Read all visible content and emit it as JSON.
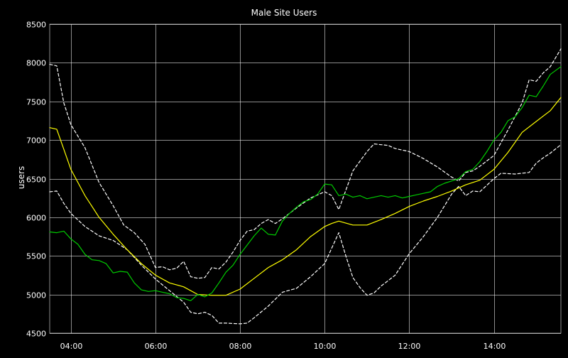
{
  "chart_data": {
    "type": "line",
    "title": "Male Site Users",
    "ylabel": "users",
    "xlabel": "",
    "ylim": [
      4500,
      8500
    ],
    "xlim": [
      "03:30",
      "15:35"
    ],
    "grid": true,
    "y_ticks": [
      4500,
      5000,
      5500,
      6000,
      6500,
      7000,
      7500,
      8000,
      8500
    ],
    "x_ticks": [
      "04:00",
      "06:00",
      "08:00",
      "10:00",
      "12:00",
      "14:00"
    ],
    "colors": {
      "background": "#000000",
      "grid": "#ffffff",
      "text": "#ffffff",
      "actual": "#00cc00",
      "forecast": "#ffff00",
      "bands": "#ffffff"
    },
    "series": [
      {
        "role": "upper-band",
        "style": "dashed",
        "color": "#ffffff",
        "points": [
          [
            "03:30",
            7980
          ],
          [
            "03:40",
            7960
          ],
          [
            "03:50",
            7480
          ],
          [
            "04:00",
            7200
          ],
          [
            "04:20",
            6900
          ],
          [
            "04:40",
            6450
          ],
          [
            "05:00",
            6150
          ],
          [
            "05:15",
            5900
          ],
          [
            "05:30",
            5800
          ],
          [
            "05:45",
            5650
          ],
          [
            "06:00",
            5350
          ],
          [
            "06:10",
            5360
          ],
          [
            "06:20",
            5320
          ],
          [
            "06:30",
            5340
          ],
          [
            "06:40",
            5430
          ],
          [
            "06:50",
            5230
          ],
          [
            "07:00",
            5210
          ],
          [
            "07:10",
            5220
          ],
          [
            "07:20",
            5350
          ],
          [
            "07:30",
            5330
          ],
          [
            "07:40",
            5420
          ],
          [
            "07:50",
            5550
          ],
          [
            "08:00",
            5700
          ],
          [
            "08:10",
            5820
          ],
          [
            "08:20",
            5840
          ],
          [
            "08:30",
            5920
          ],
          [
            "08:40",
            5970
          ],
          [
            "08:50",
            5920
          ],
          [
            "09:00",
            5980
          ],
          [
            "09:20",
            6120
          ],
          [
            "09:40",
            6250
          ],
          [
            "10:00",
            6330
          ],
          [
            "10:10",
            6280
          ],
          [
            "10:20",
            6100
          ],
          [
            "10:30",
            6350
          ],
          [
            "10:40",
            6600
          ],
          [
            "11:00",
            6850
          ],
          [
            "11:10",
            6950
          ],
          [
            "11:20",
            6940
          ],
          [
            "11:30",
            6930
          ],
          [
            "11:40",
            6890
          ],
          [
            "12:00",
            6850
          ],
          [
            "12:20",
            6760
          ],
          [
            "12:40",
            6650
          ],
          [
            "13:00",
            6520
          ],
          [
            "13:10",
            6470
          ],
          [
            "13:20",
            6580
          ],
          [
            "13:30",
            6600
          ],
          [
            "13:40",
            6660
          ],
          [
            "14:00",
            6800
          ],
          [
            "14:20",
            7130
          ],
          [
            "14:40",
            7480
          ],
          [
            "14:50",
            7780
          ],
          [
            "15:00",
            7760
          ],
          [
            "15:10",
            7870
          ],
          [
            "15:20",
            7950
          ],
          [
            "15:35",
            8180
          ]
        ]
      },
      {
        "role": "lower-band",
        "style": "dashed",
        "color": "#ffffff",
        "points": [
          [
            "03:30",
            6330
          ],
          [
            "03:40",
            6340
          ],
          [
            "03:50",
            6180
          ],
          [
            "04:00",
            6050
          ],
          [
            "04:20",
            5880
          ],
          [
            "04:40",
            5760
          ],
          [
            "05:00",
            5700
          ],
          [
            "05:20",
            5580
          ],
          [
            "05:40",
            5380
          ],
          [
            "06:00",
            5200
          ],
          [
            "06:20",
            5050
          ],
          [
            "06:40",
            4900
          ],
          [
            "06:50",
            4770
          ],
          [
            "07:00",
            4750
          ],
          [
            "07:10",
            4770
          ],
          [
            "07:20",
            4730
          ],
          [
            "07:30",
            4630
          ],
          [
            "07:40",
            4630
          ],
          [
            "08:00",
            4620
          ],
          [
            "08:10",
            4630
          ],
          [
            "08:20",
            4700
          ],
          [
            "08:40",
            4850
          ],
          [
            "09:00",
            5030
          ],
          [
            "09:20",
            5080
          ],
          [
            "09:40",
            5230
          ],
          [
            "10:00",
            5400
          ],
          [
            "10:10",
            5600
          ],
          [
            "10:20",
            5800
          ],
          [
            "10:30",
            5500
          ],
          [
            "10:40",
            5220
          ],
          [
            "10:50",
            5090
          ],
          [
            "11:00",
            4990
          ],
          [
            "11:10",
            5020
          ],
          [
            "11:20",
            5110
          ],
          [
            "11:40",
            5250
          ],
          [
            "12:00",
            5530
          ],
          [
            "12:20",
            5750
          ],
          [
            "12:40",
            6000
          ],
          [
            "13:00",
            6300
          ],
          [
            "13:10",
            6400
          ],
          [
            "13:20",
            6280
          ],
          [
            "13:30",
            6340
          ],
          [
            "13:40",
            6330
          ],
          [
            "14:00",
            6500
          ],
          [
            "14:10",
            6570
          ],
          [
            "14:30",
            6560
          ],
          [
            "14:50",
            6580
          ],
          [
            "15:00",
            6700
          ],
          [
            "15:10",
            6770
          ],
          [
            "15:20",
            6830
          ],
          [
            "15:35",
            6940
          ]
        ]
      },
      {
        "role": "forecast",
        "style": "solid",
        "color": "#ffff00",
        "points": [
          [
            "03:30",
            7160
          ],
          [
            "03:40",
            7140
          ],
          [
            "03:50",
            6880
          ],
          [
            "04:00",
            6620
          ],
          [
            "04:20",
            6280
          ],
          [
            "04:40",
            6000
          ],
          [
            "05:00",
            5780
          ],
          [
            "05:20",
            5580
          ],
          [
            "05:40",
            5400
          ],
          [
            "06:00",
            5250
          ],
          [
            "06:20",
            5150
          ],
          [
            "06:40",
            5100
          ],
          [
            "07:00",
            5000
          ],
          [
            "07:20",
            4990
          ],
          [
            "07:40",
            4990
          ],
          [
            "08:00",
            5070
          ],
          [
            "08:20",
            5210
          ],
          [
            "08:40",
            5350
          ],
          [
            "09:00",
            5450
          ],
          [
            "09:20",
            5580
          ],
          [
            "09:40",
            5750
          ],
          [
            "10:00",
            5880
          ],
          [
            "10:10",
            5920
          ],
          [
            "10:20",
            5950
          ],
          [
            "10:40",
            5900
          ],
          [
            "11:00",
            5900
          ],
          [
            "11:20",
            5970
          ],
          [
            "11:40",
            6050
          ],
          [
            "12:00",
            6140
          ],
          [
            "12:20",
            6210
          ],
          [
            "12:40",
            6270
          ],
          [
            "13:00",
            6340
          ],
          [
            "13:20",
            6420
          ],
          [
            "13:40",
            6480
          ],
          [
            "14:00",
            6620
          ],
          [
            "14:20",
            6840
          ],
          [
            "14:40",
            7100
          ],
          [
            "15:00",
            7240
          ],
          [
            "15:20",
            7380
          ],
          [
            "15:35",
            7550
          ]
        ]
      },
      {
        "role": "actual",
        "style": "solid",
        "color": "#00cc00",
        "points": [
          [
            "03:30",
            5810
          ],
          [
            "03:40",
            5800
          ],
          [
            "03:50",
            5820
          ],
          [
            "04:00",
            5720
          ],
          [
            "04:10",
            5650
          ],
          [
            "04:20",
            5520
          ],
          [
            "04:30",
            5450
          ],
          [
            "04:40",
            5440
          ],
          [
            "04:50",
            5400
          ],
          [
            "05:00",
            5280
          ],
          [
            "05:10",
            5300
          ],
          [
            "05:20",
            5290
          ],
          [
            "05:30",
            5150
          ],
          [
            "05:40",
            5060
          ],
          [
            "05:50",
            5040
          ],
          [
            "06:00",
            5050
          ],
          [
            "06:10",
            5030
          ],
          [
            "06:20",
            5010
          ],
          [
            "06:30",
            4960
          ],
          [
            "06:40",
            4950
          ],
          [
            "06:50",
            4920
          ],
          [
            "07:00",
            5000
          ],
          [
            "07:10",
            4970
          ],
          [
            "07:20",
            5020
          ],
          [
            "07:30",
            5150
          ],
          [
            "07:40",
            5290
          ],
          [
            "07:50",
            5380
          ],
          [
            "08:00",
            5520
          ],
          [
            "08:10",
            5640
          ],
          [
            "08:20",
            5760
          ],
          [
            "08:30",
            5860
          ],
          [
            "08:40",
            5780
          ],
          [
            "08:50",
            5770
          ],
          [
            "09:00",
            5950
          ],
          [
            "09:10",
            6050
          ],
          [
            "09:20",
            6130
          ],
          [
            "09:30",
            6200
          ],
          [
            "09:40",
            6230
          ],
          [
            "09:50",
            6300
          ],
          [
            "10:00",
            6430
          ],
          [
            "10:10",
            6420
          ],
          [
            "10:20",
            6280
          ],
          [
            "10:30",
            6300
          ],
          [
            "10:40",
            6260
          ],
          [
            "10:50",
            6280
          ],
          [
            "11:00",
            6240
          ],
          [
            "11:10",
            6260
          ],
          [
            "11:20",
            6280
          ],
          [
            "11:30",
            6260
          ],
          [
            "11:40",
            6280
          ],
          [
            "11:50",
            6250
          ],
          [
            "12:00",
            6270
          ],
          [
            "12:10",
            6290
          ],
          [
            "12:20",
            6310
          ],
          [
            "12:30",
            6330
          ],
          [
            "12:40",
            6400
          ],
          [
            "12:50",
            6440
          ],
          [
            "13:00",
            6470
          ],
          [
            "13:10",
            6500
          ],
          [
            "13:20",
            6590
          ],
          [
            "13:30",
            6620
          ],
          [
            "13:40",
            6720
          ],
          [
            "13:50",
            6850
          ],
          [
            "14:00",
            7000
          ],
          [
            "14:10",
            7100
          ],
          [
            "14:20",
            7250
          ],
          [
            "14:30",
            7300
          ],
          [
            "14:40",
            7420
          ],
          [
            "14:50",
            7580
          ],
          [
            "15:00",
            7560
          ],
          [
            "15:10",
            7700
          ],
          [
            "15:20",
            7850
          ],
          [
            "15:35",
            7950
          ]
        ]
      }
    ]
  }
}
